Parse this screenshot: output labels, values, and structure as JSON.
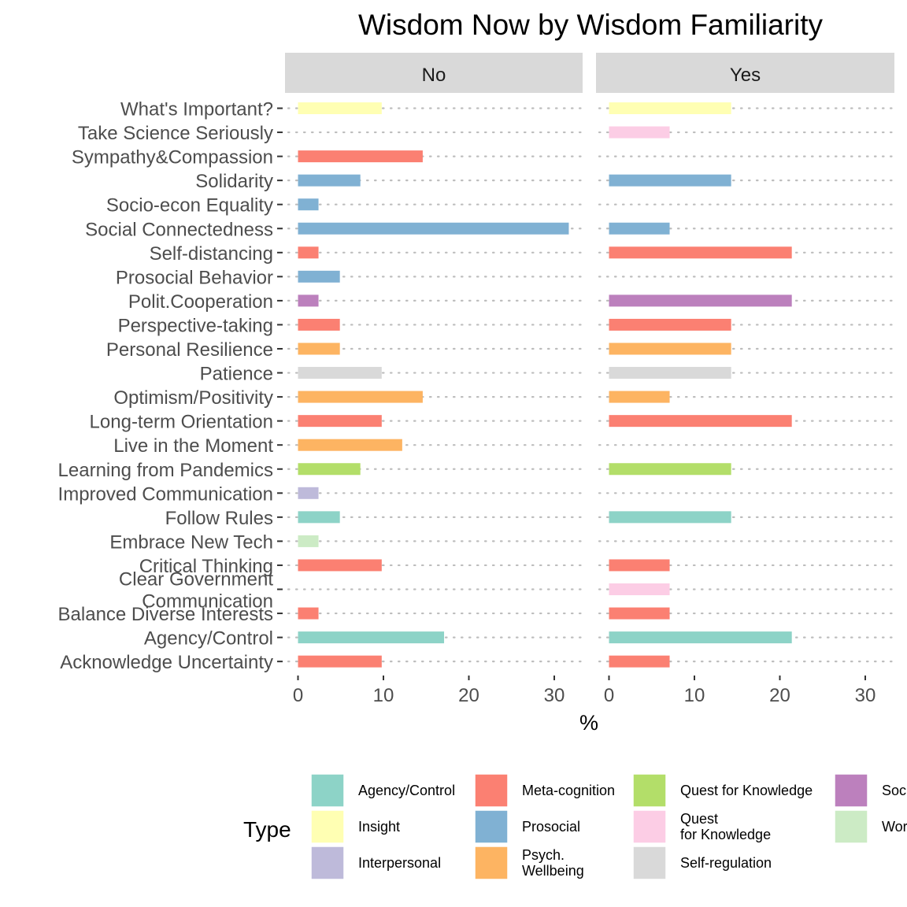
{
  "chart_data": {
    "type": "bar",
    "orientation": "horizontal",
    "title": "Wisdom Now by Wisdom Familiarity",
    "xlabel": "%",
    "ylabel": "",
    "xlim": [
      0,
      33
    ],
    "xticks": [
      0,
      10,
      20,
      30
    ],
    "grid": "dotted horizontal",
    "legend_placement": "bottom",
    "legend_title": "Type",
    "panels": [
      "No",
      "Yes"
    ],
    "categories": [
      "What's Important?",
      "Take Science Seriously",
      "Sympathy&Compassion",
      "Solidarity",
      "Socio-econ Equality",
      "Social Connectedness",
      "Self-distancing",
      "Prosocial Behavior",
      "Polit.Cooperation",
      "Perspective-taking",
      "Personal Resilience",
      "Patience",
      "Optimism/Positivity",
      "Long-term Orientation",
      "Live in the Moment",
      "Learning from Pandemics",
      "Improved Communication",
      "Follow Rules",
      "Embrace New Tech",
      "Critical Thinking",
      "Clear Government\nCommunication",
      "Balance Diverse Interests",
      "Agency/Control",
      "Acknowledge Uncertainty"
    ],
    "category_type": [
      "Insight",
      "Quest\nfor Knowledge",
      "Meta-cognition",
      "Prosocial",
      "Prosocial",
      "Prosocial",
      "Meta-cognition",
      "Prosocial",
      "Societal",
      "Meta-cognition",
      "Psych.\nWellbeing",
      "Self-regulation",
      "Psych.\nWellbeing",
      "Meta-cognition",
      "Psych.\nWellbeing",
      "Quest for Knowledge",
      "Interpersonal",
      "Agency/Control",
      "World",
      "Meta-cognition",
      "Quest\nfor Knowledge",
      "Meta-cognition",
      "Agency/Control",
      "Meta-cognition"
    ],
    "series": [
      {
        "name": "No",
        "values": [
          9.8,
          0,
          14.6,
          7.3,
          2.4,
          31.7,
          2.4,
          4.9,
          2.4,
          4.9,
          4.9,
          9.8,
          14.6,
          9.8,
          12.2,
          7.3,
          2.4,
          4.9,
          2.4,
          9.8,
          0,
          2.4,
          17.1,
          9.8
        ]
      },
      {
        "name": "Yes",
        "values": [
          14.3,
          7.1,
          0,
          14.3,
          0,
          7.1,
          21.4,
          0,
          21.4,
          14.3,
          14.3,
          14.3,
          7.1,
          21.4,
          0,
          14.3,
          0,
          14.3,
          0,
          7.1,
          7.1,
          7.1,
          21.4,
          7.1
        ]
      }
    ],
    "legend": [
      {
        "label": "Agency/Control",
        "color": "#8DD3C7"
      },
      {
        "label": "Insight",
        "color": "#FFFFB3"
      },
      {
        "label": "Interpersonal",
        "color": "#BEBADA"
      },
      {
        "label": "Meta-cognition",
        "color": "#FB8072"
      },
      {
        "label": "Prosocial",
        "color": "#80B1D3"
      },
      {
        "label": "Psych.\nWellbeing",
        "color": "#FDB462"
      },
      {
        "label": "Quest for Knowledge",
        "color": "#B3DE69"
      },
      {
        "label": "Quest\nfor Knowledge",
        "color": "#FCCDE5"
      },
      {
        "label": "Self-regulation",
        "color": "#D9D9D9"
      },
      {
        "label": "Societal",
        "color": "#BC80BD"
      },
      {
        "label": "World",
        "color": "#CCEBC5"
      }
    ]
  }
}
